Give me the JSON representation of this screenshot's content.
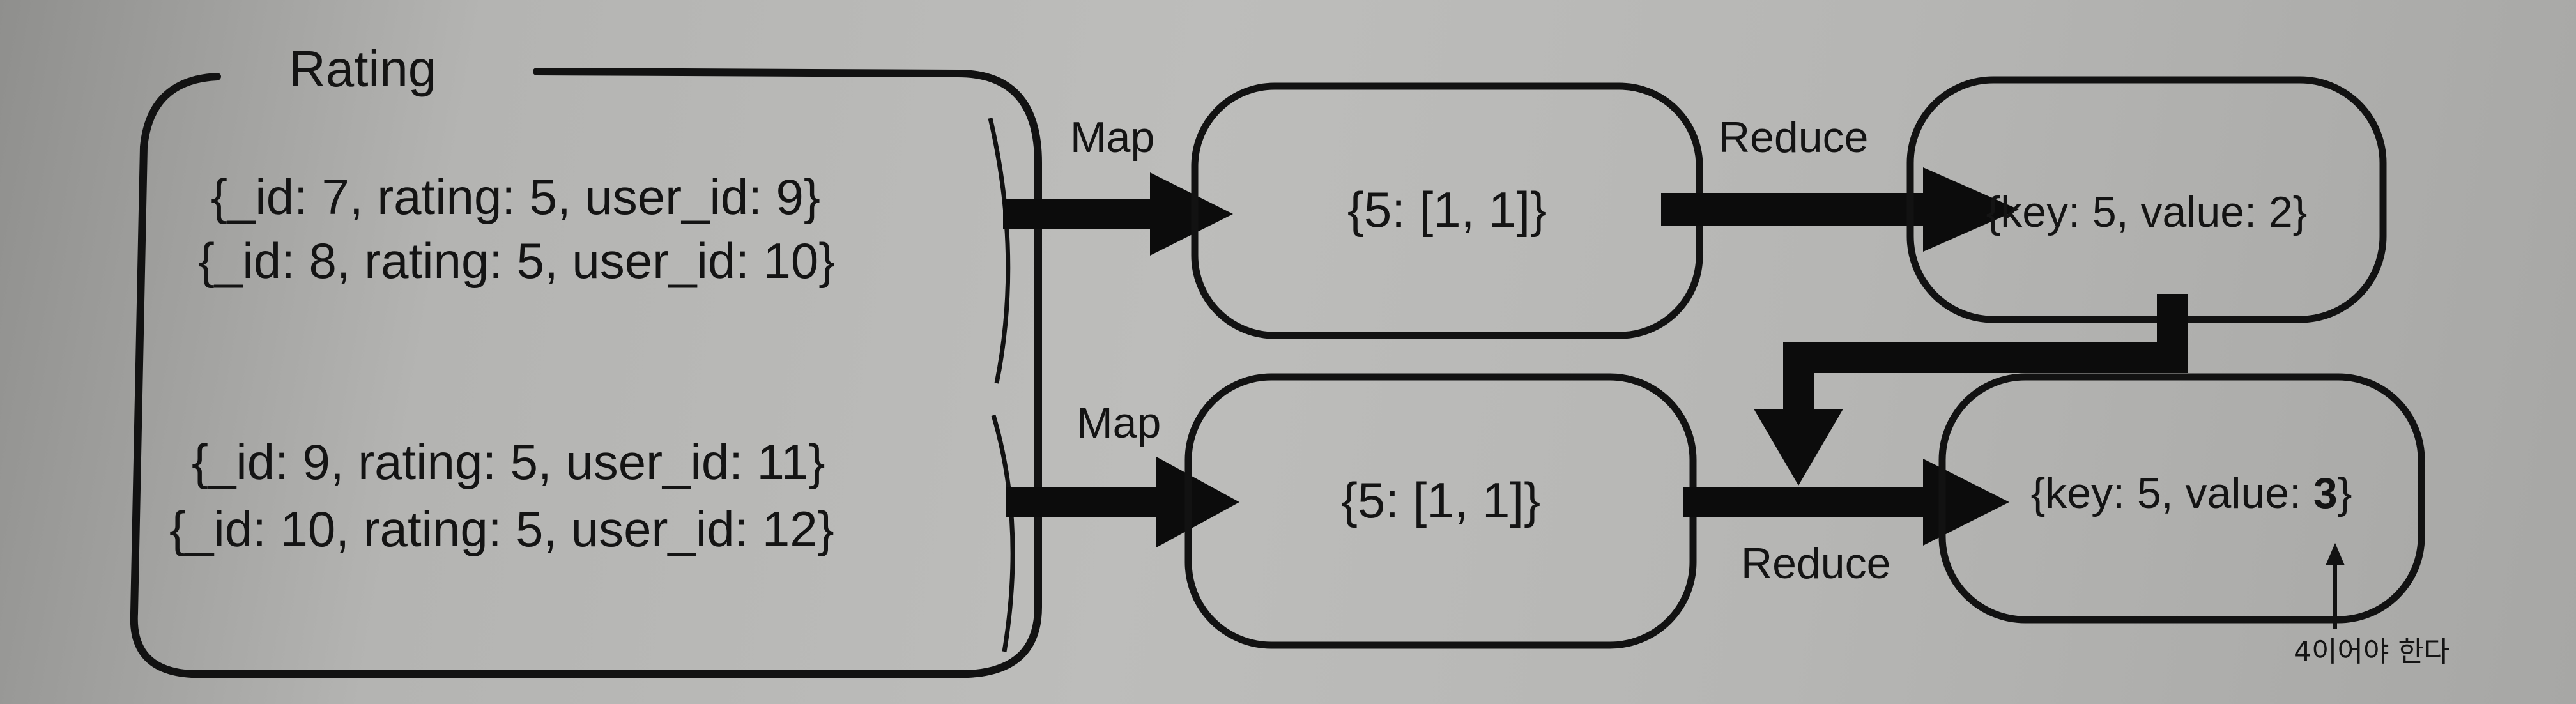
{
  "rating_box": {
    "title": "Rating",
    "group1": [
      "{_id: 7, rating: 5, user_id: 9}",
      "{_id: 8, rating: 5, user_id: 10}"
    ],
    "group2": [
      "{_id: 9, rating: 5, user_id: 11}",
      "{_id: 10, rating: 5, user_id: 12}"
    ]
  },
  "map_labels": [
    "Map",
    "Map"
  ],
  "map_results": [
    "{5: [1, 1]}",
    "{5: [1, 1]}"
  ],
  "reduce_labels": [
    "Reduce",
    "Reduce"
  ],
  "reduce_results": {
    "top": "{key: 5, value: 2}",
    "bottom_prefix": "{key: 5, value: ",
    "bottom_value": "3",
    "bottom_suffix": "}"
  },
  "annotation": "4이어야 한다"
}
